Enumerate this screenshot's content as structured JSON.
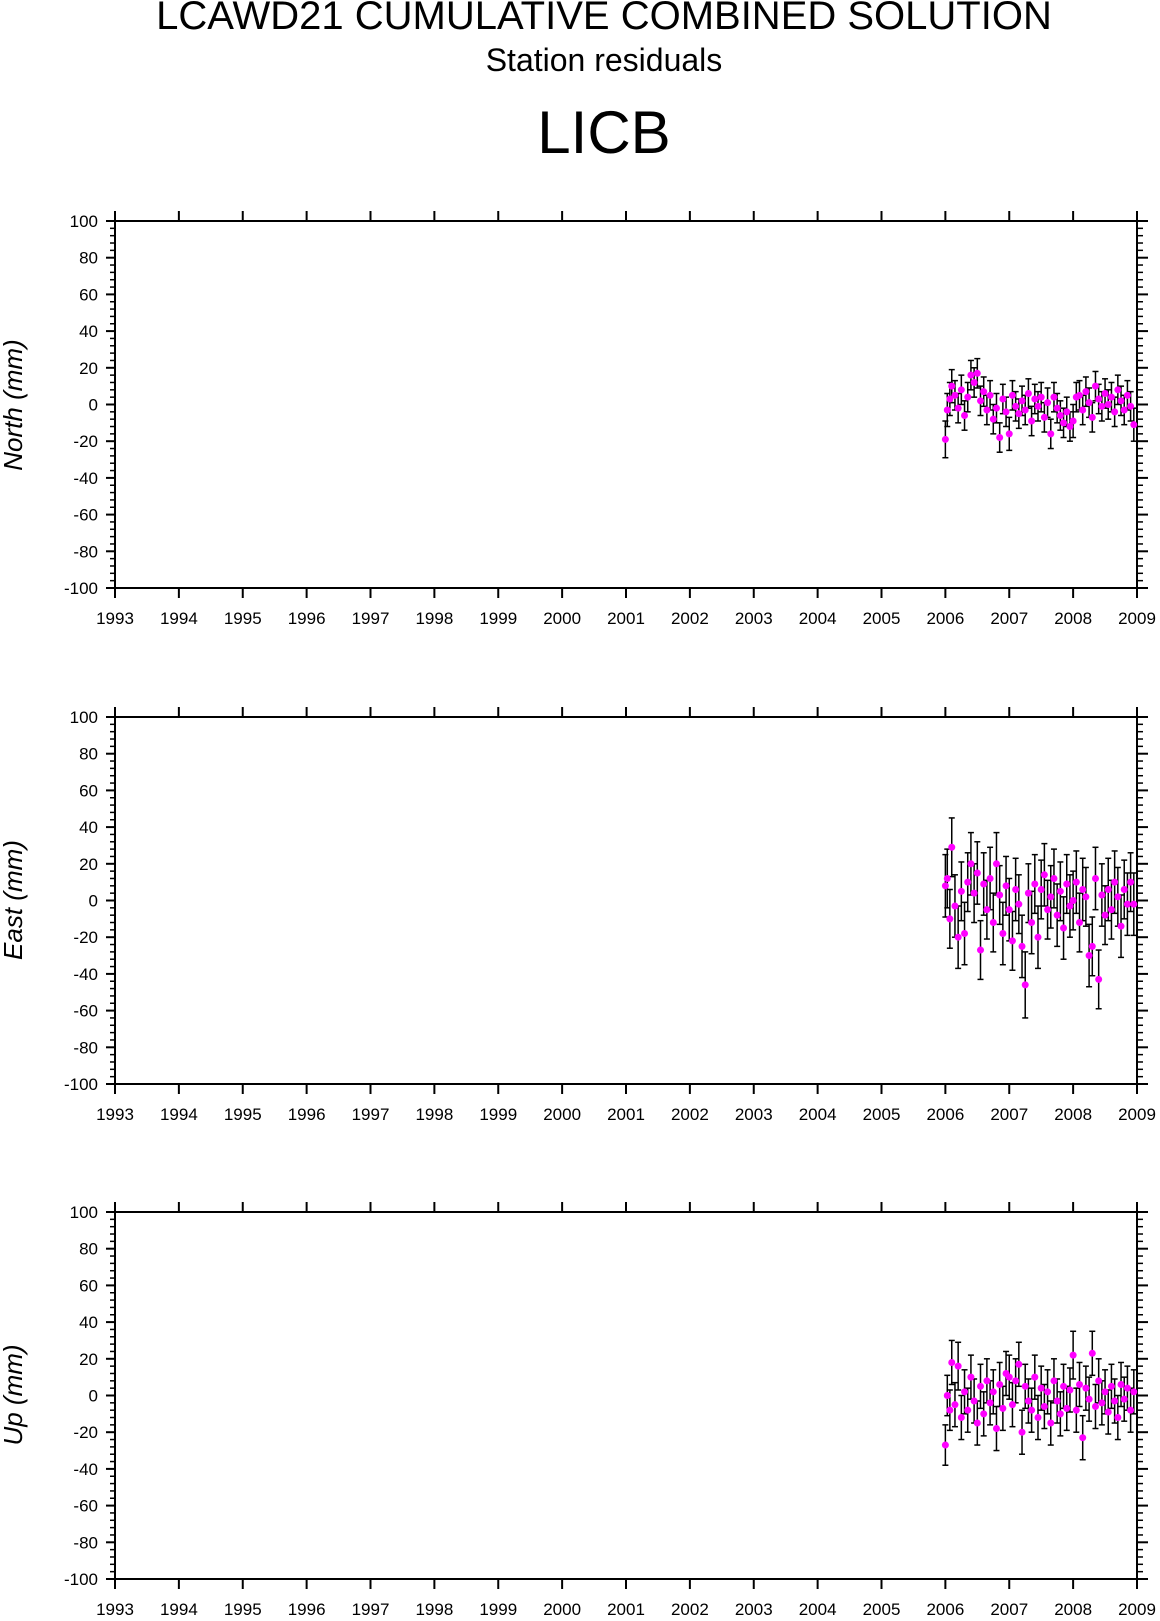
{
  "title": "LCAWD21 CUMULATIVE COMBINED SOLUTION",
  "subtitle": "Station residuals",
  "station": "LICB",
  "colors": {
    "point": "#ff00ff",
    "errorbar": "#000000",
    "axis": "#000000"
  },
  "chart_data": [
    {
      "type": "scatter",
      "ylabel": "North (mm)",
      "xlim": [
        1993,
        2009
      ],
      "ylim": [
        -100,
        100
      ],
      "x_ticks": [
        "1993",
        "1994",
        "1995",
        "1996",
        "1997",
        "1998",
        "1999",
        "2000",
        "2001",
        "2002",
        "2003",
        "2004",
        "2005",
        "2006",
        "2007",
        "2008",
        "2009"
      ],
      "y_ticks": [
        "100",
        "80",
        "60",
        "40",
        "20",
        "0",
        "-20",
        "-40",
        "-60",
        "-80",
        "-100"
      ],
      "series": [
        {
          "x": [
            2006.0,
            2006.03,
            2006.07,
            2006.1,
            2006.15,
            2006.2,
            2006.25,
            2006.3,
            2006.35,
            2006.4,
            2006.45,
            2006.5,
            2006.55,
            2006.6,
            2006.65,
            2006.7,
            2006.75,
            2006.8,
            2006.85,
            2006.9,
            2006.95,
            2007.0,
            2007.05,
            2007.1,
            2007.15,
            2007.2,
            2007.25,
            2007.3,
            2007.35,
            2007.4,
            2007.45,
            2007.5,
            2007.55,
            2007.6,
            2007.65,
            2007.7,
            2007.75,
            2007.8,
            2007.85,
            2007.9,
            2007.95,
            2008.0,
            2008.05,
            2008.1,
            2008.15,
            2008.2,
            2008.25,
            2008.3,
            2008.35,
            2008.4,
            2008.45,
            2008.5,
            2008.55,
            2008.6,
            2008.65,
            2008.7,
            2008.75,
            2008.8,
            2008.85,
            2008.9,
            2008.95
          ],
          "y": [
            -19,
            -3,
            3,
            10,
            5,
            -2,
            8,
            -6,
            4,
            16,
            12,
            17,
            2,
            7,
            -3,
            5,
            -8,
            -2,
            -18,
            3,
            -4,
            -16,
            5,
            -1,
            -5,
            2,
            -3,
            6,
            -9,
            3,
            -1,
            4,
            -7,
            1,
            -16,
            4,
            -2,
            -6,
            -10,
            -4,
            -12,
            -9,
            4,
            5,
            -3,
            7,
            1,
            -7,
            10,
            3,
            -1,
            6,
            0,
            4,
            -4,
            8,
            2,
            -3,
            5,
            -1,
            -11
          ],
          "err": [
            10,
            9,
            9,
            9,
            8,
            8,
            8,
            8,
            8,
            8,
            8,
            8,
            8,
            8,
            8,
            8,
            8,
            8,
            8,
            8,
            8,
            9,
            8,
            8,
            8,
            8,
            8,
            8,
            8,
            8,
            8,
            8,
            8,
            8,
            8,
            8,
            8,
            8,
            8,
            8,
            8,
            9,
            8,
            8,
            8,
            8,
            8,
            8,
            8,
            8,
            8,
            8,
            8,
            8,
            8,
            8,
            8,
            8,
            8,
            8,
            9
          ]
        }
      ]
    },
    {
      "type": "scatter",
      "ylabel": "East (mm)",
      "xlim": [
        1993,
        2009
      ],
      "ylim": [
        -100,
        100
      ],
      "x_ticks": [
        "1993",
        "1994",
        "1995",
        "1996",
        "1997",
        "1998",
        "1999",
        "2000",
        "2001",
        "2002",
        "2003",
        "2004",
        "2005",
        "2006",
        "2007",
        "2008",
        "2009"
      ],
      "y_ticks": [
        "100",
        "80",
        "60",
        "40",
        "20",
        "0",
        "-20",
        "-40",
        "-60",
        "-80",
        "-100"
      ],
      "series": [
        {
          "x": [
            2006.0,
            2006.03,
            2006.07,
            2006.1,
            2006.15,
            2006.2,
            2006.25,
            2006.3,
            2006.35,
            2006.4,
            2006.45,
            2006.5,
            2006.55,
            2006.6,
            2006.65,
            2006.7,
            2006.75,
            2006.8,
            2006.85,
            2006.9,
            2006.95,
            2007.0,
            2007.05,
            2007.1,
            2007.15,
            2007.2,
            2007.25,
            2007.3,
            2007.35,
            2007.4,
            2007.45,
            2007.5,
            2007.55,
            2007.6,
            2007.65,
            2007.7,
            2007.75,
            2007.8,
            2007.85,
            2007.9,
            2007.95,
            2008.0,
            2008.05,
            2008.1,
            2008.15,
            2008.2,
            2008.25,
            2008.3,
            2008.35,
            2008.4,
            2008.45,
            2008.5,
            2008.55,
            2008.6,
            2008.65,
            2008.7,
            2008.75,
            2008.8,
            2008.85,
            2008.9,
            2008.95
          ],
          "y": [
            8,
            12,
            -10,
            29,
            -3,
            -20,
            5,
            -18,
            10,
            20,
            4,
            15,
            -27,
            9,
            -5,
            12,
            -12,
            20,
            3,
            -18,
            8,
            -5,
            -22,
            6,
            -2,
            -25,
            -46,
            4,
            -12,
            9,
            -20,
            6,
            14,
            -5,
            2,
            12,
            -8,
            5,
            -15,
            9,
            -3,
            0,
            10,
            -12,
            6,
            2,
            -30,
            -25,
            12,
            -43,
            3,
            -8,
            6,
            -5,
            10,
            2,
            -14,
            6,
            -2,
            10,
            -2
          ],
          "err": [
            17,
            16,
            16,
            16,
            17,
            17,
            16,
            17,
            16,
            17,
            16,
            17,
            16,
            17,
            16,
            17,
            16,
            17,
            16,
            17,
            16,
            17,
            16,
            17,
            16,
            17,
            18,
            16,
            17,
            16,
            17,
            16,
            17,
            16,
            17,
            16,
            17,
            16,
            17,
            16,
            17,
            16,
            17,
            16,
            17,
            16,
            17,
            16,
            17,
            16,
            17,
            16,
            17,
            16,
            17,
            16,
            17,
            16,
            17,
            16,
            17
          ]
        }
      ]
    },
    {
      "type": "scatter",
      "ylabel": "Up (mm)",
      "xlim": [
        1993,
        2009
      ],
      "ylim": [
        -100,
        100
      ],
      "x_ticks": [
        "1993",
        "1994",
        "1995",
        "1996",
        "1997",
        "1998",
        "1999",
        "2000",
        "2001",
        "2002",
        "2003",
        "2004",
        "2005",
        "2006",
        "2007",
        "2008",
        "2009"
      ],
      "y_ticks": [
        "100",
        "80",
        "60",
        "40",
        "20",
        "0",
        "-20",
        "-40",
        "-60",
        "-80",
        "-100"
      ],
      "series": [
        {
          "x": [
            2006.0,
            2006.03,
            2006.07,
            2006.1,
            2006.15,
            2006.2,
            2006.25,
            2006.3,
            2006.35,
            2006.4,
            2006.45,
            2006.5,
            2006.55,
            2006.6,
            2006.65,
            2006.7,
            2006.75,
            2006.8,
            2006.85,
            2006.9,
            2006.95,
            2007.0,
            2007.05,
            2007.1,
            2007.15,
            2007.2,
            2007.25,
            2007.3,
            2007.35,
            2007.4,
            2007.45,
            2007.5,
            2007.55,
            2007.6,
            2007.65,
            2007.7,
            2007.75,
            2007.8,
            2007.85,
            2007.9,
            2007.95,
            2008.0,
            2008.05,
            2008.1,
            2008.15,
            2008.2,
            2008.25,
            2008.3,
            2008.35,
            2008.4,
            2008.45,
            2008.5,
            2008.55,
            2008.6,
            2008.65,
            2008.7,
            2008.75,
            2008.8,
            2008.85,
            2008.9,
            2008.95
          ],
          "y": [
            -27,
            0,
            -8,
            18,
            -5,
            16,
            -12,
            2,
            -8,
            10,
            -3,
            -15,
            5,
            -10,
            8,
            -4,
            2,
            -18,
            6,
            -7,
            12,
            10,
            -5,
            8,
            17,
            -20,
            5,
            -3,
            -8,
            10,
            -12,
            4,
            -6,
            2,
            -15,
            8,
            -3,
            -10,
            5,
            -7,
            3,
            22,
            -8,
            6,
            -23,
            4,
            -2,
            23,
            -6,
            8,
            -4,
            2,
            -9,
            5,
            -3,
            -12,
            6,
            -2,
            4,
            -8,
            2
          ],
          "err": [
            11,
            11,
            11,
            12,
            12,
            13,
            12,
            12,
            12,
            12,
            12,
            12,
            12,
            12,
            12,
            12,
            12,
            12,
            12,
            12,
            12,
            12,
            12,
            12,
            12,
            12,
            12,
            12,
            12,
            12,
            12,
            12,
            12,
            12,
            12,
            12,
            12,
            12,
            12,
            12,
            12,
            13,
            12,
            12,
            12,
            12,
            12,
            12,
            12,
            12,
            12,
            12,
            12,
            12,
            12,
            12,
            12,
            12,
            12,
            12,
            12
          ]
        }
      ]
    }
  ]
}
